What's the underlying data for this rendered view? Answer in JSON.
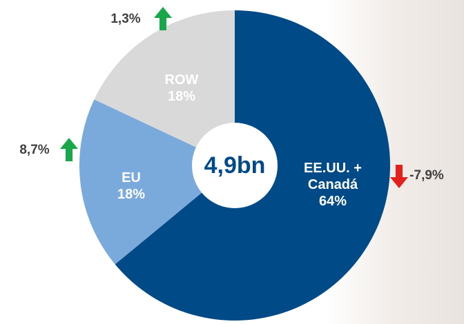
{
  "chart_data": {
    "type": "pie",
    "donut": true,
    "center_label": "4,9bn",
    "categories": [
      "EE.UU. + Canadá",
      "EU",
      "ROW"
    ],
    "values": [
      64,
      18,
      18
    ],
    "value_labels": [
      "64%",
      "18%",
      "18%"
    ],
    "colors": [
      "#004a87",
      "#7aa9db",
      "#d9d9d9"
    ],
    "changes": [
      -7.9,
      8.7,
      1.3
    ],
    "change_labels": [
      "-7,9%",
      "8,7%",
      "1,3%"
    ]
  }
}
